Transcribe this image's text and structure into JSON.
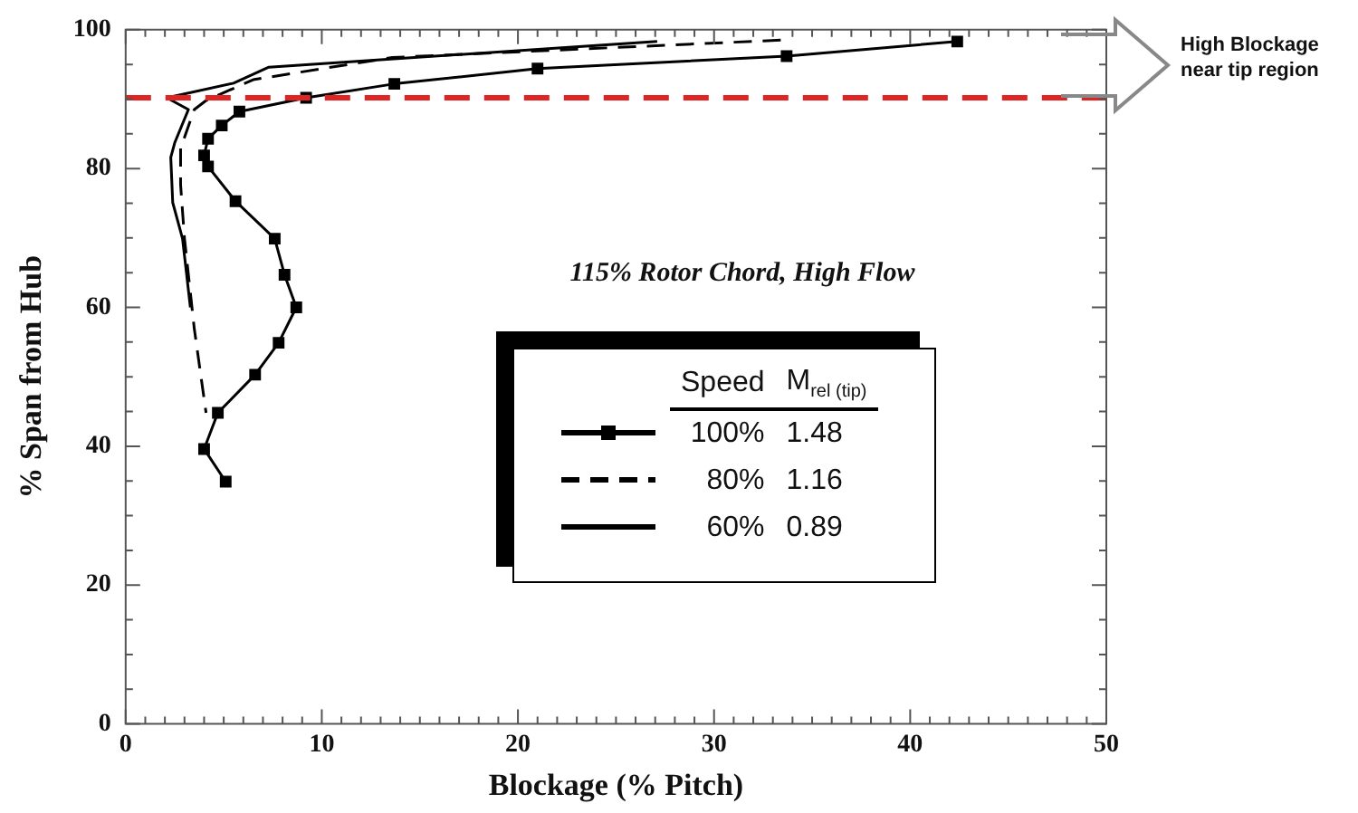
{
  "chart_data": {
    "type": "line",
    "xlabel": "Blockage (% Pitch)",
    "ylabel": "% Span from Hub",
    "legend": "center",
    "legend_title": "Speed",
    "series": [
      {
        "name": "100%",
        "color": "#000000",
        "marker": "square",
        "line_style": "solid",
        "x": [
          42.4,
          33.7,
          21.0,
          13.7,
          9.2,
          5.8,
          4.9,
          4.2,
          4.0,
          4.2,
          5.6,
          7.6,
          8.1,
          8.7,
          7.8,
          6.6,
          4.7,
          4.0,
          5.1
        ],
        "values": [
          98.3,
          96.2,
          94.4,
          92.2,
          90.2,
          88.2,
          86.2,
          84.3,
          81.9,
          80.3,
          75.3,
          69.9,
          64.7,
          60.0,
          54.9,
          50.3,
          44.8,
          39.6,
          34.9
        ]
      },
      {
        "name": "80%",
        "color": "#000000",
        "marker": "none",
        "line_style": "dashed",
        "x": [
          33.4,
          13.6,
          6.5,
          4.1,
          3.5,
          2.8,
          2.8,
          3.0,
          3.3,
          3.5,
          4.1
        ],
        "values": [
          98.5,
          96.0,
          92.8,
          89.8,
          88.5,
          82.9,
          77.7,
          69.9,
          62.1,
          56.9,
          44.8
        ]
      },
      {
        "name": "60%",
        "color": "#000000",
        "marker": "none",
        "line_style": "solid",
        "x": [
          27.1,
          7.3,
          5.5,
          2.1,
          3.2,
          2.5,
          2.3,
          2.4,
          2.9,
          3.3
        ],
        "values": [
          98.3,
          94.6,
          92.3,
          90.2,
          88.5,
          83.7,
          81.6,
          75.1,
          69.9,
          60.0
        ]
      }
    ],
    "xlim": [
      0,
      50
    ],
    "ylim": [
      0,
      100
    ],
    "xticks": [
      0,
      {
        "value": 1,
        "label": null
      },
      {
        "value": 2,
        "label": null
      },
      {
        "value": 3,
        "label": null
      },
      {
        "value": 4,
        "label": null
      },
      {
        "value": 5,
        "label": null
      },
      {
        "value": 6,
        "label": null
      },
      {
        "value": 7,
        "label": null
      },
      {
        "value": 8,
        "label": null
      },
      {
        "value": 9,
        "label": null
      },
      10,
      {
        "value": 11,
        "label": null
      },
      {
        "value": 12,
        "label": null
      },
      {
        "value": 13,
        "label": null
      },
      {
        "value": 14,
        "label": null
      },
      {
        "value": 15,
        "label": null
      },
      {
        "value": 16,
        "label": null
      },
      {
        "value": 17,
        "label": null
      },
      {
        "value": 18,
        "label": null
      },
      {
        "value": 19,
        "label": null
      },
      20,
      {
        "value": 21,
        "label": null
      },
      {
        "value": 22,
        "label": null
      },
      {
        "value": 23,
        "label": null
      },
      {
        "value": 24,
        "label": null
      },
      {
        "value": 25,
        "label": null
      },
      {
        "value": 26,
        "label": null
      },
      {
        "value": 27,
        "label": null
      },
      {
        "value": 28,
        "label": null
      },
      {
        "value": 29,
        "label": null
      },
      30,
      {
        "value": 31,
        "label": null
      },
      {
        "value": 32,
        "label": null
      },
      {
        "value": 33,
        "label": null
      },
      {
        "value": 34,
        "label": null
      },
      {
        "value": 35,
        "label": null
      },
      {
        "value": 36,
        "label": null
      },
      {
        "value": 37,
        "label": null
      },
      {
        "value": 38,
        "label": null
      },
      {
        "value": 39,
        "label": null
      },
      40,
      {
        "value": 41,
        "label": null
      },
      {
        "value": 42,
        "label": null
      },
      {
        "value": 43,
        "label": null
      },
      {
        "value": 44,
        "label": null
      },
      {
        "value": 45,
        "label": null
      },
      {
        "value": 46,
        "label": null
      },
      {
        "value": 47,
        "label": null
      },
      {
        "value": 48,
        "label": null
      },
      {
        "value": 49,
        "label": null
      },
      50
    ],
    "yticks": [
      0,
      {
        "value": 5,
        "label": null
      },
      {
        "value": 10,
        "label": null
      },
      {
        "value": 15,
        "label": null
      },
      20,
      {
        "value": 25,
        "label": null
      },
      {
        "value": 30,
        "label": null
      },
      {
        "value": 35,
        "label": null
      },
      40,
      {
        "value": 45,
        "label": null
      },
      {
        "value": 50,
        "label": null
      },
      {
        "value": 55,
        "label": null
      },
      60,
      {
        "value": 65,
        "label": null
      },
      {
        "value": 70,
        "label": null
      },
      {
        "value": 75,
        "label": null
      },
      80,
      {
        "value": 85,
        "label": null
      },
      {
        "value": 90,
        "label": null
      },
      {
        "value": 95,
        "label": null
      },
      100
    ],
    "grid": false,
    "ref_lines": [
      {
        "axis": "y",
        "value": 90.2,
        "color": "#e02424",
        "line_style": "dashed"
      }
    ],
    "annotations": [
      "115% Rotor Chord, High Flow",
      "M$_{rel (tip)}$",
      "1.48",
      "1.16",
      "0.89",
      "High Blockage near tip region"
    ]
  }
}
